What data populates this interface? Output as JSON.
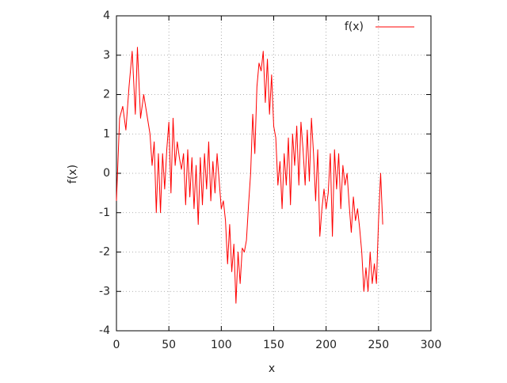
{
  "chart_data": {
    "type": "line",
    "xlabel": "x",
    "ylabel": "f(x)",
    "xlim": [
      0,
      300
    ],
    "xticks": [
      0,
      50,
      100,
      150,
      200,
      250,
      300
    ],
    "ylim": [
      -4,
      4
    ],
    "yticks": [
      -4,
      -3,
      -2,
      -1,
      0,
      1,
      2,
      3,
      4
    ],
    "grid": true,
    "legend": "top-right",
    "x": [
      0,
      3,
      6,
      9,
      12,
      15,
      18,
      20,
      23,
      26,
      29,
      32,
      34,
      36,
      38,
      40,
      42,
      44,
      46,
      48,
      50,
      52,
      54,
      56,
      58,
      60,
      62,
      64,
      66,
      68,
      70,
      72,
      74,
      76,
      78,
      80,
      82,
      84,
      86,
      88,
      90,
      92,
      94,
      96,
      98,
      100,
      102,
      104,
      106,
      108,
      110,
      112,
      114,
      116,
      118,
      120,
      122,
      124,
      126,
      128,
      130,
      132,
      134,
      136,
      138,
      140,
      142,
      144,
      146,
      148,
      150,
      152,
      154,
      156,
      158,
      160,
      162,
      164,
      166,
      168,
      170,
      172,
      174,
      176,
      178,
      180,
      182,
      184,
      186,
      188,
      190,
      192,
      194,
      196,
      198,
      200,
      202,
      204,
      206,
      208,
      210,
      212,
      214,
      216,
      218,
      220,
      222,
      224,
      226,
      228,
      230,
      232,
      234,
      236,
      238,
      240,
      242,
      244,
      246,
      248,
      250,
      252,
      254
    ],
    "series": [
      {
        "name": "f(x)",
        "color": "#ff0000",
        "values": [
          -0.7,
          1.4,
          1.7,
          1.1,
          2.2,
          3.1,
          1.5,
          3.2,
          1.4,
          2.0,
          1.5,
          1.0,
          0.2,
          0.8,
          -1.0,
          0.5,
          -1.0,
          0.5,
          -0.4,
          0.6,
          1.3,
          -0.5,
          1.4,
          0.2,
          0.8,
          0.4,
          0.1,
          0.5,
          -0.8,
          0.6,
          -0.6,
          0.4,
          -0.9,
          0.2,
          -1.3,
          0.4,
          -0.8,
          0.5,
          -0.4,
          0.8,
          -0.7,
          0.3,
          -0.5,
          0.5,
          -0.2,
          -0.9,
          -0.7,
          -1.2,
          -2.3,
          -1.3,
          -2.5,
          -1.8,
          -3.3,
          -2.0,
          -2.8,
          -1.9,
          -2.0,
          -1.7,
          -0.8,
          0.0,
          1.5,
          0.5,
          2.2,
          2.8,
          2.6,
          3.1,
          1.8,
          2.9,
          1.5,
          2.5,
          1.2,
          0.9,
          -0.3,
          0.3,
          -0.9,
          0.5,
          -0.3,
          0.9,
          -0.8,
          1.0,
          0.2,
          1.2,
          -0.3,
          1.3,
          0.6,
          -0.3,
          1.1,
          -0.2,
          1.4,
          0.5,
          -0.7,
          0.6,
          -1.6,
          -0.9,
          -0.4,
          -0.9,
          -0.5,
          0.5,
          -1.6,
          0.6,
          -0.4,
          0.5,
          -0.9,
          0.2,
          -0.3,
          0.0,
          -0.8,
          -1.5,
          -0.6,
          -1.2,
          -0.9,
          -1.4,
          -2.0,
          -3.0,
          -2.4,
          -3.0,
          -2.0,
          -2.8,
          -2.3,
          -2.8,
          -1.2,
          0.0,
          -1.3
        ]
      }
    ]
  }
}
